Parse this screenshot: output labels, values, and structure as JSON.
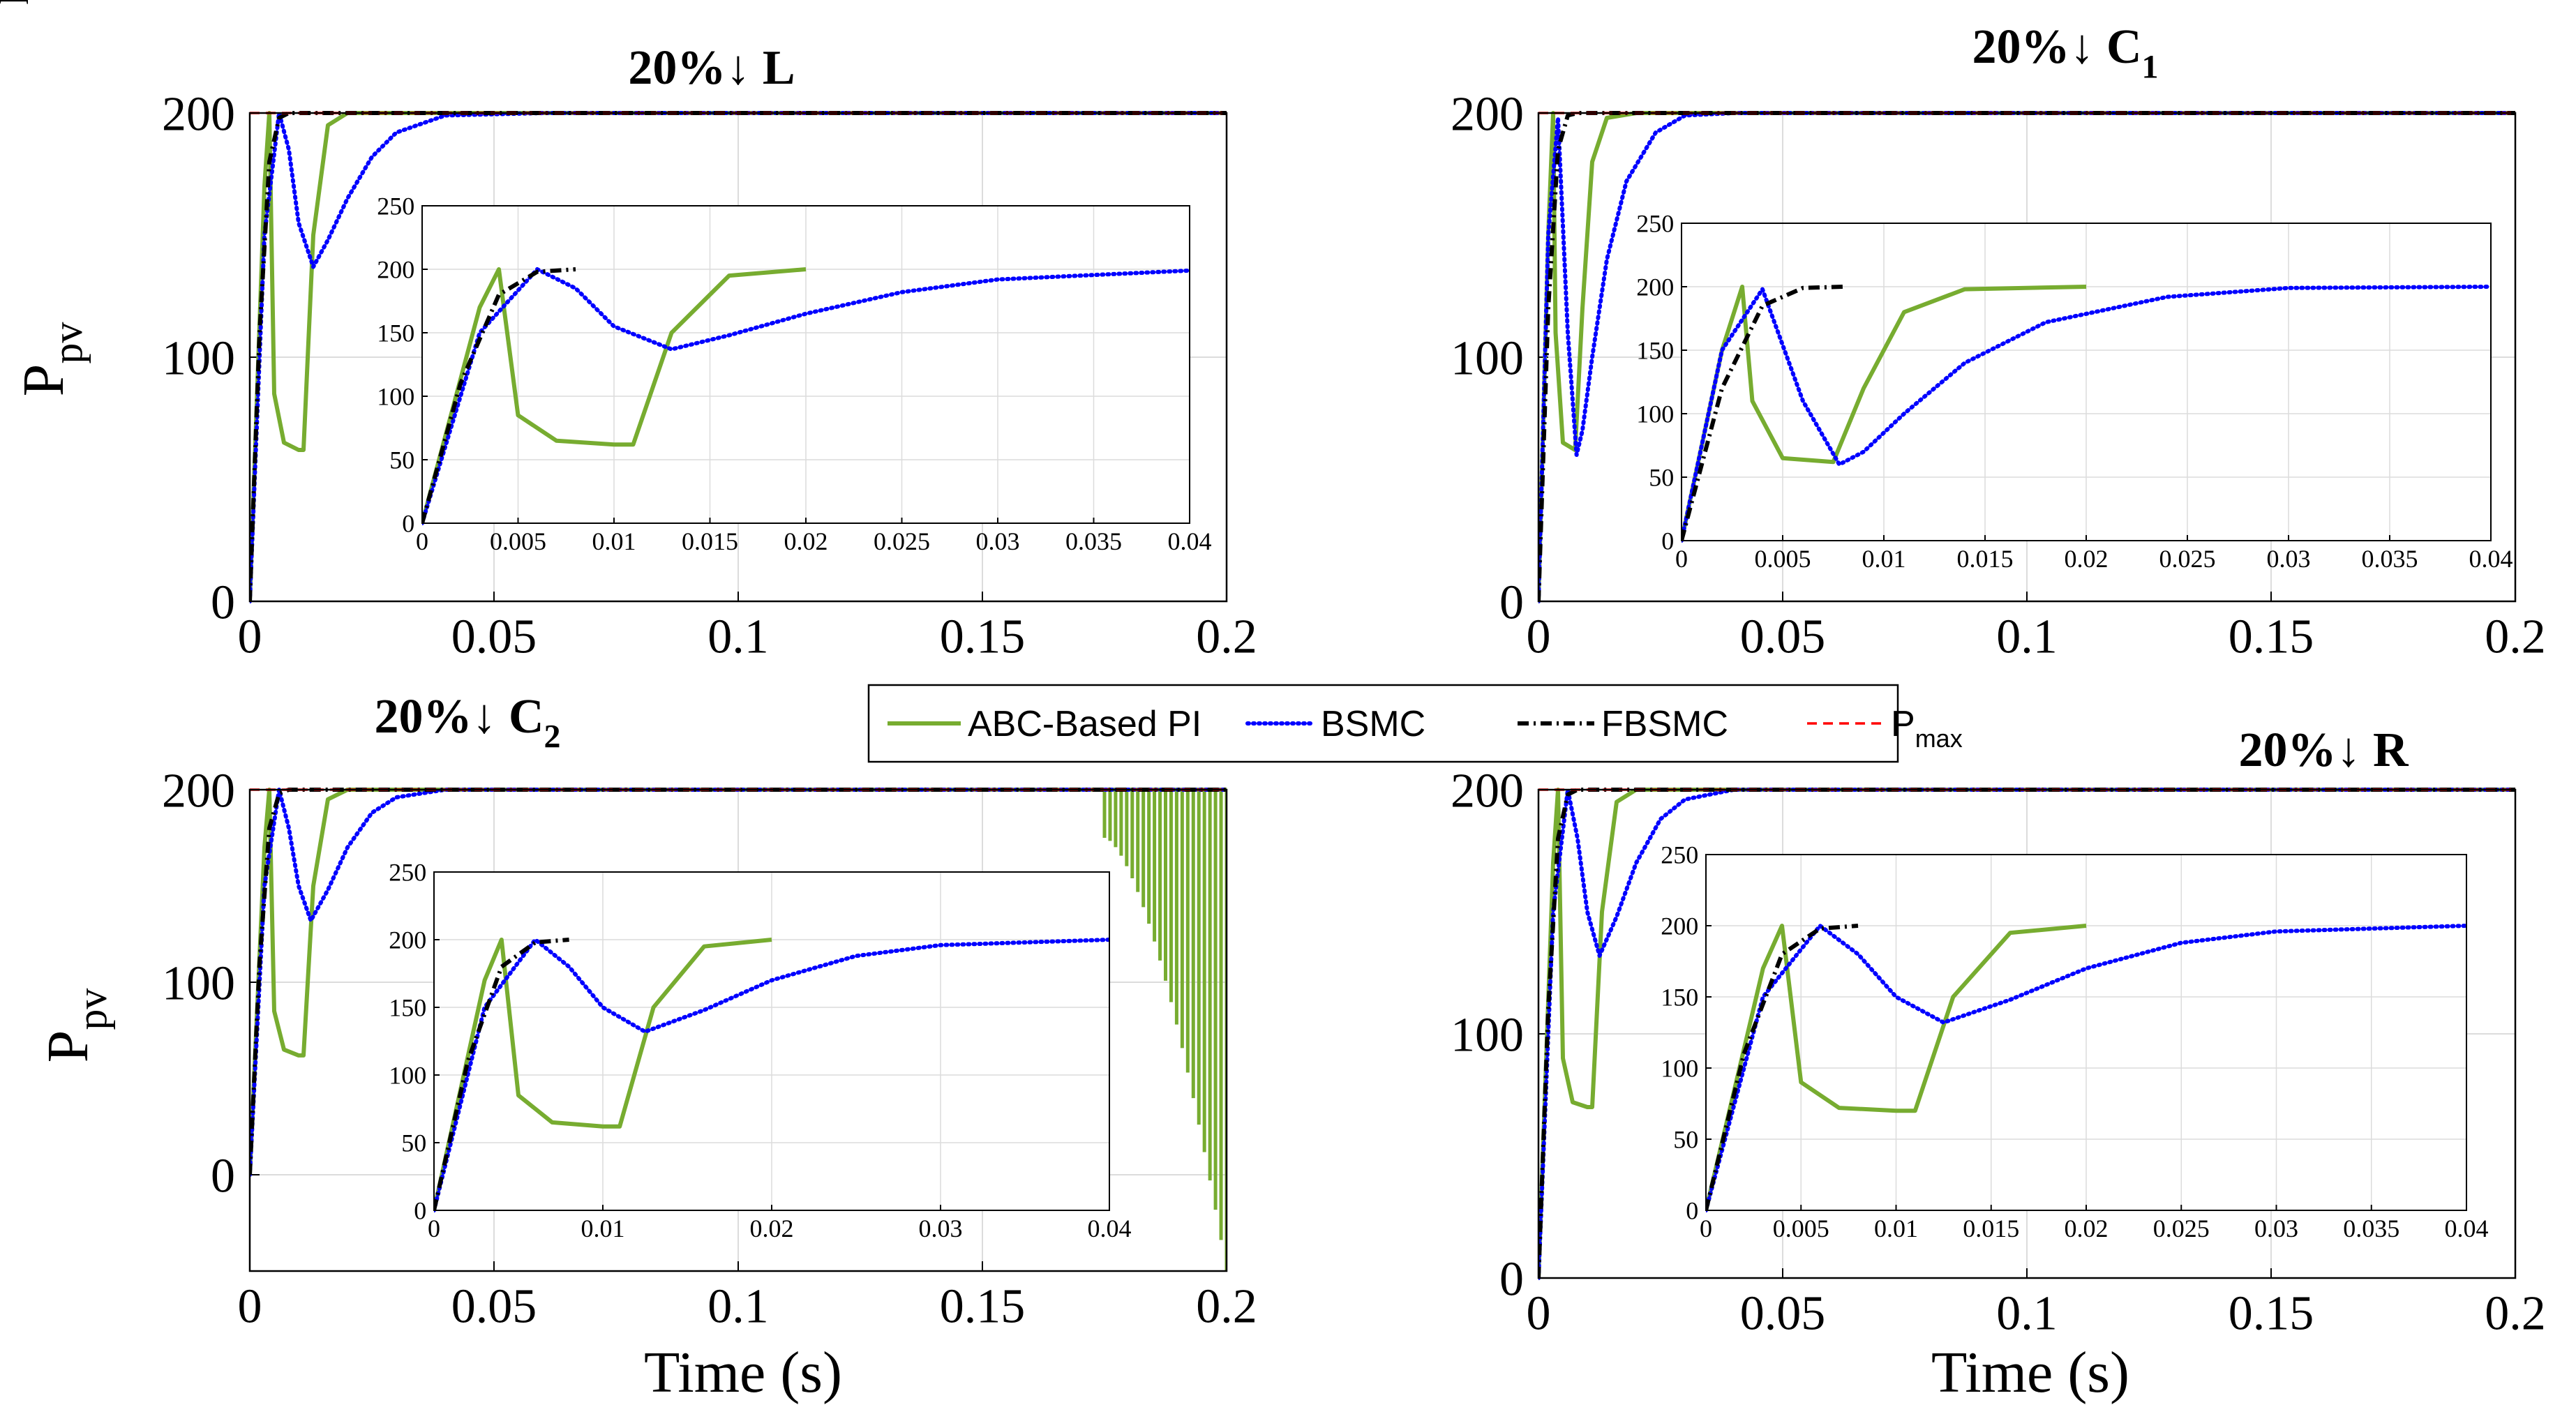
{
  "colors": {
    "ABC-Based PI": "#77ac30",
    "BSMC": "#0000ff",
    "FBSMC": "#000000",
    "Pmax": "#ff0000",
    "grid": "#dcdcdc"
  },
  "legend": {
    "entries": [
      {
        "label": "ABC-Based PI",
        "style": "solid"
      },
      {
        "label": "BSMC",
        "style": "dotted"
      },
      {
        "label": "FBSMC",
        "style": "dashdot"
      },
      {
        "label": "P",
        "sub": "max",
        "style": "dashed"
      }
    ]
  },
  "chart_data": [
    {
      "type": "line",
      "title": "20%↓ L",
      "ylabel": "P",
      "ylabel_sub": "pv",
      "xlabel": "",
      "xlim": [
        0,
        0.2
      ],
      "ylim": [
        0,
        200
      ],
      "xticks": [
        "0",
        "0.05",
        "0.1",
        "0.15",
        "0.2"
      ],
      "yticks": [
        "0",
        "100",
        "200"
      ],
      "series": [
        {
          "name": "ABC-Based PI",
          "x": [
            0,
            0.003,
            0.004,
            0.005,
            0.007,
            0.01,
            0.011,
            0.013,
            0.016,
            0.02,
            0.2
          ],
          "y": [
            0,
            170,
            200,
            85,
            65,
            62,
            62,
            150,
            195,
            200,
            200
          ]
        },
        {
          "name": "BSMC",
          "x": [
            0,
            0.003,
            0.006,
            0.008,
            0.01,
            0.013,
            0.016,
            0.02,
            0.025,
            0.03,
            0.04,
            0.06,
            0.2
          ],
          "y": [
            0,
            150,
            200,
            185,
            155,
            137,
            148,
            165,
            182,
            192,
            199,
            200,
            200
          ]
        },
        {
          "name": "FBSMC",
          "x": [
            0,
            0.002,
            0.004,
            0.006,
            0.008,
            0.2
          ],
          "y": [
            0,
            110,
            180,
            198,
            200,
            200
          ]
        },
        {
          "name": "Pmax",
          "x": [
            0,
            0.2
          ],
          "y": [
            200,
            200
          ]
        }
      ],
      "inset": {
        "xlim": [
          0,
          0.04
        ],
        "ylim": [
          0,
          250
        ],
        "xticks": [
          "0",
          "0.005",
          "0.01",
          "0.015",
          "0.02",
          "0.025",
          "0.03",
          "0.035",
          "0.04"
        ],
        "yticks": [
          "0",
          "50",
          "100",
          "150",
          "200",
          "250"
        ]
      }
    },
    {
      "type": "line",
      "title": "20%↓ C",
      "title_sub": "1",
      "ylabel": "P",
      "ylabel_sub": "pv",
      "xlabel": "",
      "xlim": [
        0,
        0.2
      ],
      "ylim": [
        0,
        200
      ],
      "xticks": [
        "0",
        "0.05",
        "0.1",
        "0.15",
        "0.2"
      ],
      "yticks": [
        "0",
        "100",
        "200"
      ],
      "series": [
        {
          "name": "ABC-Based PI",
          "x": [
            0,
            0.002,
            0.003,
            0.0035,
            0.005,
            0.0075,
            0.009,
            0.011,
            0.014,
            0.02,
            0.2
          ],
          "y": [
            0,
            150,
            200,
            110,
            65,
            62,
            120,
            180,
            198,
            200,
            200
          ]
        },
        {
          "name": "BSMC",
          "x": [
            0,
            0.002,
            0.004,
            0.006,
            0.0078,
            0.009,
            0.011,
            0.014,
            0.018,
            0.024,
            0.03,
            0.04,
            0.2
          ],
          "y": [
            0,
            150,
            198,
            110,
            60,
            70,
            100,
            140,
            172,
            192,
            199,
            200,
            200
          ]
        },
        {
          "name": "FBSMC",
          "x": [
            0,
            0.002,
            0.004,
            0.006,
            0.008,
            0.2
          ],
          "y": [
            0,
            120,
            185,
            199,
            200,
            200
          ]
        },
        {
          "name": "Pmax",
          "x": [
            0,
            0.2
          ],
          "y": [
            200,
            200
          ]
        }
      ],
      "inset": {
        "xlim": [
          0,
          0.04
        ],
        "ylim": [
          0,
          250
        ],
        "xticks": [
          "0",
          "0.005",
          "0.01",
          "0.015",
          "0.02",
          "0.025",
          "0.03",
          "0.035",
          "0.04"
        ],
        "yticks": [
          "0",
          "50",
          "100",
          "150",
          "200",
          "250"
        ]
      }
    },
    {
      "type": "line",
      "title": "20%↓ C",
      "title_sub": "2",
      "ylabel": "P",
      "ylabel_sub": "pv",
      "xlabel": "Time (s)",
      "xlim": [
        0,
        0.2
      ],
      "ylim": [
        -50,
        200
      ],
      "xticks": [
        "0",
        "0.05",
        "0.1",
        "0.15",
        "0.2"
      ],
      "yticks": [
        "0",
        "100",
        "200"
      ],
      "series": [
        {
          "name": "ABC-Based PI",
          "x": [
            0,
            0.003,
            0.004,
            0.005,
            0.007,
            0.01,
            0.011,
            0.013,
            0.016,
            0.02,
            0.175,
            0.2
          ],
          "y": [
            0,
            170,
            200,
            85,
            65,
            62,
            62,
            150,
            195,
            200,
            200,
            200
          ],
          "oscillation": {
            "x_start": 0.175,
            "x_end": 0.2,
            "y_high": 200,
            "y_low_start": 175,
            "y_low_end": -50
          }
        },
        {
          "name": "BSMC",
          "x": [
            0,
            0.003,
            0.006,
            0.008,
            0.01,
            0.0125,
            0.016,
            0.02,
            0.025,
            0.03,
            0.04,
            0.2
          ],
          "y": [
            0,
            150,
            200,
            180,
            150,
            132,
            148,
            170,
            188,
            196,
            200,
            200
          ]
        },
        {
          "name": "FBSMC",
          "x": [
            0,
            0.002,
            0.004,
            0.006,
            0.008,
            0.2
          ],
          "y": [
            0,
            110,
            180,
            198,
            200,
            200
          ]
        },
        {
          "name": "Pmax",
          "x": [
            0,
            0.2
          ],
          "y": [
            200,
            200
          ]
        }
      ],
      "inset": {
        "xlim": [
          0,
          0.04
        ],
        "ylim": [
          0,
          250
        ],
        "xticks": [
          "0",
          "0.01",
          "0.02",
          "0.03",
          "0.04"
        ],
        "yticks": [
          "0",
          "50",
          "100",
          "150",
          "200",
          "250"
        ]
      }
    },
    {
      "type": "line",
      "title": "20%↓ R",
      "ylabel": "",
      "ylabel_sub": "",
      "xlabel": "Time (s)",
      "xlim": [
        0,
        0.2
      ],
      "ylim": [
        0,
        200
      ],
      "xticks": [
        "0",
        "0.05",
        "0.1",
        "0.15",
        "0.2"
      ],
      "yticks": [
        "0",
        "100",
        "200"
      ],
      "series": [
        {
          "name": "ABC-Based PI",
          "x": [
            0,
            0.003,
            0.004,
            0.005,
            0.007,
            0.01,
            0.011,
            0.013,
            0.016,
            0.02,
            0.2
          ],
          "y": [
            0,
            170,
            200,
            90,
            72,
            70,
            70,
            150,
            195,
            200,
            200
          ]
        },
        {
          "name": "BSMC",
          "x": [
            0,
            0.003,
            0.006,
            0.008,
            0.01,
            0.0125,
            0.016,
            0.02,
            0.025,
            0.03,
            0.04,
            0.2
          ],
          "y": [
            0,
            150,
            200,
            180,
            150,
            132,
            148,
            170,
            188,
            196,
            200,
            200
          ]
        },
        {
          "name": "FBSMC",
          "x": [
            0,
            0.002,
            0.004,
            0.006,
            0.008,
            0.2
          ],
          "y": [
            0,
            110,
            180,
            198,
            200,
            200
          ]
        },
        {
          "name": "Pmax",
          "x": [
            0,
            0.2
          ],
          "y": [
            200,
            200
          ]
        }
      ],
      "inset": {
        "xlim": [
          0,
          0.04
        ],
        "ylim": [
          0,
          250
        ],
        "xticks": [
          "0",
          "0.005",
          "0.01",
          "0.015",
          "0.02",
          "0.025",
          "0.03",
          "0.035",
          "0.04"
        ],
        "yticks": [
          "0",
          "50",
          "100",
          "150",
          "200",
          "250"
        ]
      }
    }
  ]
}
